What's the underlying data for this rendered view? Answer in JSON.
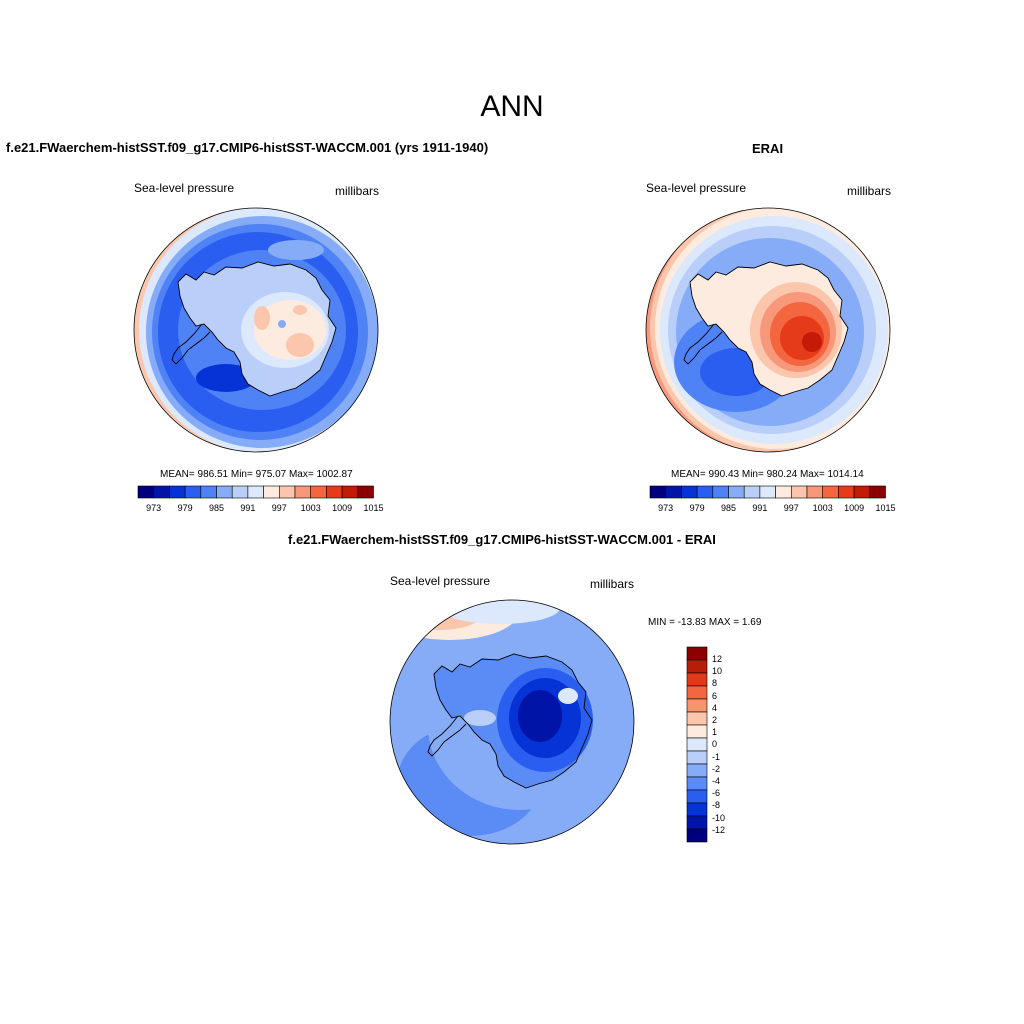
{
  "figure": {
    "main_title": "ANN"
  },
  "panels": [
    {
      "id": "model",
      "title": "f.e21.FWaerchem-histSST.f09_g17.CMIP6-histSST-WACCM.001 (yrs 1911-1940)",
      "left_label": "Sea-level pressure",
      "right_label": "millibars",
      "stats": "MEAN= 986.51  Min= 975.07  Max= 1002.87",
      "colorbar_ticks": [
        "973",
        "979",
        "985",
        "991",
        "997",
        "1003",
        "1009",
        "1015"
      ]
    },
    {
      "id": "obs",
      "title": "ERAI",
      "left_label": "Sea-level pressure",
      "right_label": "millibars",
      "stats": "MEAN= 990.43  Min= 980.24  Max= 1014.14",
      "colorbar_ticks": [
        "973",
        "979",
        "985",
        "991",
        "997",
        "1003",
        "1009",
        "1015"
      ]
    },
    {
      "id": "diff",
      "title": "f.e21.FWaerchem-histSST.f09_g17.CMIP6-histSST-WACCM.001 - ERAI",
      "left_label": "Sea-level pressure",
      "right_label": "millibars",
      "stats": "MIN = -13.83 MAX =   1.69",
      "colorbar_ticks": [
        "12",
        "10",
        "8",
        "6",
        "4",
        "2",
        "1",
        "0",
        "-1",
        "-2",
        "-4",
        "-6",
        "-8",
        "-10",
        "-12"
      ]
    }
  ],
  "colors": {
    "abs_scale": [
      "#00007f",
      "#0014a8",
      "#0533d6",
      "#2a5ef0",
      "#4f82f5",
      "#86acf8",
      "#b9cff9",
      "#dce8fb",
      "#fdebe0",
      "#fbc6ac",
      "#f8987a",
      "#f4663f",
      "#e63b1a",
      "#c41a08",
      "#8b0000"
    ],
    "diff_scale": [
      "#8b0000",
      "#b81c0a",
      "#df3b1a",
      "#f4663f",
      "#f7946e",
      "#fbc6ac",
      "#fdebe0",
      "#dce8fb",
      "#b9cff9",
      "#86acf8",
      "#5b8bf4",
      "#2a5ef0",
      "#0533d6",
      "#0014a8",
      "#00007f"
    ]
  }
}
